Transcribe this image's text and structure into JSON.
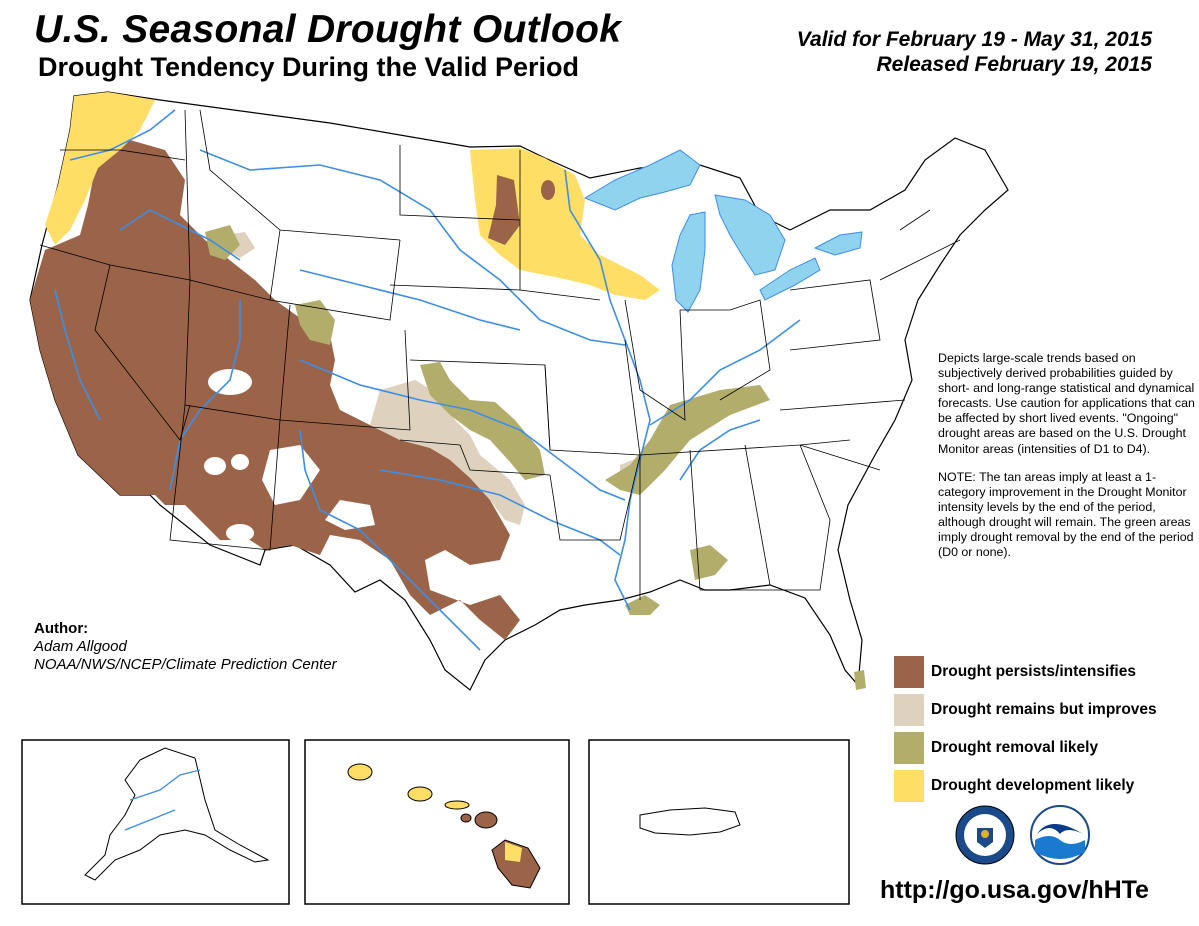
{
  "header": {
    "title": "U.S. Seasonal Drought Outlook",
    "subtitle": "Drought Tendency During the Valid Period",
    "valid": "Valid for February 19 - May 31, 2015",
    "released": "Released February 19, 2015"
  },
  "description": {
    "paragraph1": "Depicts large-scale trends based on subjectively derived probabilities guided by short- and long-range statistical and dynamical forecasts. Use caution for applications that can be affected by short lived events. \"Ongoing\" drought areas are based on the U.S. Drought Monitor areas (intensities of D1 to D4).",
    "paragraph2": "NOTE: The tan areas imply at least a 1-category improvement in the Drought Monitor intensity levels by the end of the period, although drought will remain. The green areas imply drought removal by the end of the period (D0 or none)."
  },
  "legend": {
    "items": [
      {
        "label": "Drought persists/intensifies",
        "color": "#9b6449"
      },
      {
        "label": "Drought remains but improves",
        "color": "#ded2bf"
      },
      {
        "label": "Drought removal likely",
        "color": "#b3ad6c"
      },
      {
        "label": "Drought development likely",
        "color": "#ffde65"
      }
    ]
  },
  "author": {
    "heading": "Author:",
    "name": "Adam Allgood",
    "org": "NOAA/NWS/NCEP/Climate Prediction Center"
  },
  "url": "http://go.usa.gov/hHTe",
  "colors": {
    "water": "#8fd3ef",
    "rivers": "#3d8ee8",
    "border": "#000000",
    "land": "#ffffff"
  },
  "logos": [
    "doc-seal-icon",
    "noaa-logo-icon"
  ]
}
